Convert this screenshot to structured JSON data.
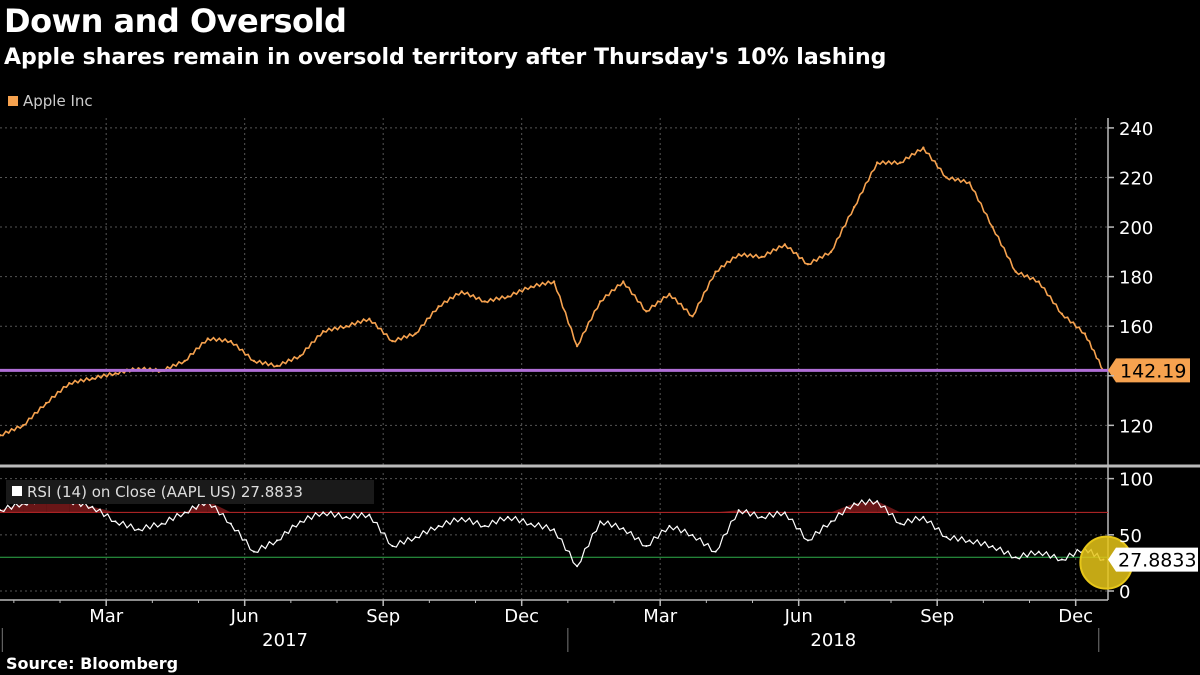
{
  "title": "Down and Oversold",
  "subtitle": "Apple shares remain in oversold territory after Thursday's 10% lashing",
  "legend": {
    "label": "Apple Inc",
    "color": "#f6a24f"
  },
  "source": "Source: Bloomberg",
  "colors": {
    "price": "#f6a24f",
    "support": "#b06fd6",
    "rsi": "#ffffff",
    "overbought": "#c0282a",
    "oversold": "#2fae4a",
    "highlight": "#e6c619"
  },
  "chart_data": [
    {
      "type": "line",
      "name": "Apple Inc price",
      "ylim": [
        104,
        244
      ],
      "yticks": [
        120,
        140,
        160,
        180,
        200,
        220,
        240
      ],
      "ytick_labels": [
        "120",
        "",
        "160",
        "180",
        "200",
        "220",
        "240"
      ],
      "last_value": 142.19,
      "last_value_label": "142.19",
      "support_level": 142.19,
      "x_range": [
        0,
        24
      ],
      "x": [
        0,
        0.5,
        1,
        1.5,
        2,
        2.5,
        3,
        3.5,
        4,
        4.5,
        5,
        5.5,
        6,
        6.5,
        7,
        7.5,
        8,
        8.5,
        9,
        9.5,
        10,
        10.5,
        11,
        11.5,
        12,
        12.5,
        13,
        13.5,
        14,
        14.5,
        15,
        15.5,
        16,
        16.5,
        17,
        17.5,
        18,
        18.5,
        19,
        19.5,
        20,
        20.5,
        21,
        21.5,
        22,
        22.5,
        23,
        23.5,
        23.9
      ],
      "y": [
        116,
        120,
        129,
        137,
        139,
        141,
        143,
        142,
        146,
        155,
        154,
        146,
        144,
        148,
        158,
        160,
        163,
        154,
        157,
        168,
        174,
        170,
        172,
        176,
        178,
        152,
        170,
        178,
        166,
        173,
        164,
        182,
        189,
        188,
        193,
        185,
        190,
        208,
        226,
        226,
        232,
        220,
        218,
        200,
        182,
        178,
        165,
        157,
        142.19
      ]
    },
    {
      "type": "line",
      "name": "RSI (14) on Close (AAPL US)",
      "legend": "RSI (14)  on Close (AAPL US) 27.8833",
      "ylim": [
        -8,
        105
      ],
      "yticks": [
        0,
        50,
        100
      ],
      "ytick_labels": [
        "0",
        "50",
        "100"
      ],
      "overbought": 70,
      "oversold": 30,
      "last_value": 27.8833,
      "last_value_label": "27.8833",
      "x_range": [
        0,
        24
      ],
      "x": [
        0,
        0.5,
        1,
        1.5,
        2,
        2.5,
        3,
        3.5,
        4,
        4.5,
        5,
        5.5,
        6,
        6.5,
        7,
        7.5,
        8,
        8.5,
        9,
        9.5,
        10,
        10.5,
        11,
        11.5,
        12,
        12.5,
        13,
        13.5,
        14,
        14.5,
        15,
        15.5,
        16,
        16.5,
        17,
        17.5,
        18,
        18.5,
        19,
        19.5,
        20,
        20.5,
        21,
        21.5,
        22,
        22.5,
        23,
        23.5,
        23.9
      ],
      "y": [
        72,
        78,
        82,
        80,
        75,
        62,
        55,
        60,
        70,
        80,
        60,
        35,
        45,
        62,
        70,
        66,
        68,
        40,
        48,
        58,
        65,
        58,
        66,
        60,
        55,
        22,
        62,
        56,
        40,
        58,
        50,
        35,
        72,
        66,
        70,
        45,
        62,
        78,
        80,
        60,
        66,
        48,
        45,
        40,
        30,
        35,
        28,
        38,
        27.88
      ]
    }
  ],
  "x_axis": {
    "month_labels": [
      "Mar",
      "Jun",
      "Sep",
      "Dec",
      "Mar",
      "Jun",
      "Sep",
      "Dec"
    ],
    "year_labels": [
      "2017",
      "2018"
    ]
  }
}
